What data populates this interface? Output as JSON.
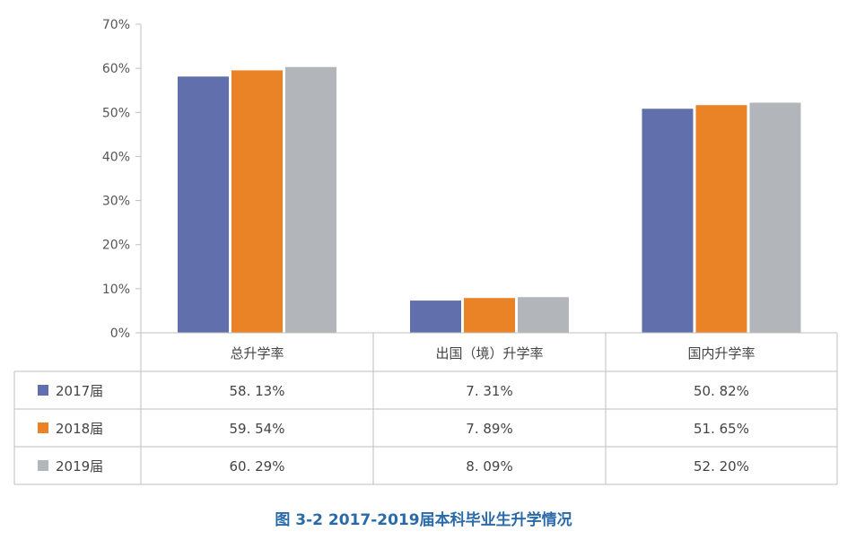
{
  "caption": "图 3-2   2017-2019届本科毕业生升学情况",
  "chart_data": {
    "type": "bar",
    "categories": [
      "总升学率",
      "出国（境）升学率",
      "国内升学率"
    ],
    "series": [
      {
        "name": "2017届",
        "color": "#6170ad",
        "values": [
          58.13,
          7.31,
          50.82
        ],
        "labels": [
          "58. 13%",
          "7. 31%",
          "50. 82%"
        ]
      },
      {
        "name": "2018届",
        "color": "#ea8326",
        "values": [
          59.54,
          7.89,
          51.65
        ],
        "labels": [
          "59. 54%",
          "7. 89%",
          "51. 65%"
        ]
      },
      {
        "name": "2019届",
        "color": "#b2b5b9",
        "values": [
          60.29,
          8.09,
          52.2
        ],
        "labels": [
          "60. 29%",
          "8. 09%",
          "52. 20%"
        ]
      }
    ],
    "ylim": [
      0,
      70
    ],
    "yticks": [
      "0%",
      "10%",
      "20%",
      "30%",
      "40%",
      "50%",
      "60%",
      "70%"
    ],
    "grid": false,
    "legend": "data-table"
  }
}
